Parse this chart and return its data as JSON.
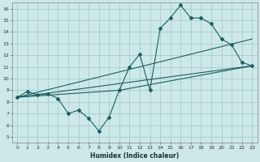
{
  "title": "",
  "xlabel": "Humidex (Indice chaleur)",
  "bg_color": "#cce8e8",
  "grid_color": "#aacccc",
  "line_color": "#1a6060",
  "xlim": [
    -0.5,
    23.5
  ],
  "ylim": [
    4.5,
    16.5
  ],
  "xticks": [
    0,
    1,
    2,
    3,
    4,
    5,
    6,
    7,
    8,
    9,
    10,
    11,
    12,
    13,
    14,
    15,
    16,
    17,
    18,
    19,
    20,
    21,
    22,
    23
  ],
  "yticks": [
    5,
    6,
    7,
    8,
    9,
    10,
    11,
    12,
    13,
    14,
    15,
    16
  ],
  "line1_x": [
    0,
    1,
    2,
    3,
    4,
    5,
    6,
    7,
    8,
    9,
    10,
    11,
    12,
    13,
    14,
    15,
    16,
    17,
    18,
    19,
    20,
    21,
    22,
    23
  ],
  "line1_y": [
    8.4,
    8.9,
    8.6,
    8.7,
    8.3,
    7.0,
    7.3,
    6.6,
    5.5,
    6.7,
    9.0,
    11.0,
    12.1,
    9.0,
    14.3,
    15.2,
    16.3,
    15.2,
    15.2,
    14.7,
    13.4,
    12.9,
    11.4,
    11.1
  ],
  "line2_x": [
    0,
    23
  ],
  "line2_y": [
    8.4,
    11.1
  ],
  "line3_x": [
    0,
    23
  ],
  "line3_y": [
    8.4,
    13.4
  ],
  "line4_x": [
    0,
    10,
    23
  ],
  "line4_y": [
    8.4,
    9.0,
    11.1
  ]
}
